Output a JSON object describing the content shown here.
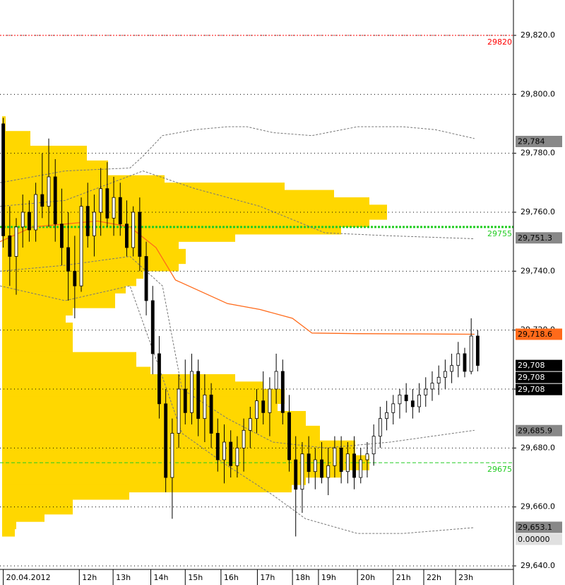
{
  "chart_data": {
    "type": "candlestick",
    "xlim": [
      0,
      79
    ],
    "ylim": [
      29638.8,
      29832
    ],
    "xticks": [
      {
        "value": 0.5,
        "label": "20.04.2012"
      },
      {
        "value": 12.2,
        "label": "12h"
      },
      {
        "value": 17.4,
        "label": "13h"
      },
      {
        "value": 23.2,
        "label": "14h"
      },
      {
        "value": 28.5,
        "label": "15h"
      },
      {
        "value": 34,
        "label": "16h"
      },
      {
        "value": 39.6,
        "label": "17h"
      },
      {
        "value": 45,
        "label": "18h"
      },
      {
        "value": 49,
        "label": "19h"
      },
      {
        "value": 55,
        "label": "20h"
      },
      {
        "value": 60.5,
        "label": "21h"
      },
      {
        "value": 65.2,
        "label": "22h"
      },
      {
        "value": 70.1,
        "label": "23h"
      }
    ],
    "yticks": [
      {
        "value": 29820,
        "label": "29,820.0"
      },
      {
        "value": 29800,
        "label": "29,800.0"
      },
      {
        "value": 29780,
        "label": "29,780.0"
      },
      {
        "value": 29760,
        "label": "29,760.0"
      },
      {
        "value": 29740,
        "label": "29,740.0"
      },
      {
        "value": 29720,
        "label": "29,720.0"
      },
      {
        "value": 29700,
        "label": "29,700.0"
      },
      {
        "value": 29680,
        "label": "29,680.0"
      },
      {
        "value": 29660,
        "label": "29,660.0"
      },
      {
        "value": 29640,
        "label": "29,640.0"
      }
    ],
    "grid": true,
    "open": [
      29790,
      29752,
      29745,
      29755,
      29760,
      29754,
      29766,
      29762,
      29772,
      29756,
      29748,
      29740,
      29735,
      29762,
      29752,
      29760,
      29768,
      29758,
      29765,
      29756,
      29748,
      29760,
      29745,
      29730,
      29712,
      29695,
      29670,
      29685,
      29700,
      29692,
      29706,
      29690,
      29698,
      29685,
      29676,
      29682,
      29674,
      29680,
      29686,
      29690,
      29696,
      29692,
      29700,
      29706,
      29692,
      29676,
      29666,
      29678,
      29672,
      29676,
      29670,
      29674,
      29680,
      29672,
      29678,
      29670,
      29676,
      29678,
      29684,
      29690,
      29692,
      29695,
      29698,
      29696,
      29694,
      29698,
      29700,
      29702,
      29704,
      29706,
      29708,
      29712,
      29706,
      29718
    ],
    "high": [
      29792,
      29762,
      29758,
      29766,
      29764,
      29770,
      29780,
      29785,
      29778,
      29768,
      29760,
      29752,
      29765,
      29770,
      29766,
      29775,
      29777,
      29772,
      29770,
      29764,
      29762,
      29765,
      29750,
      29735,
      29718,
      29700,
      29690,
      29705,
      29710,
      29712,
      29710,
      29705,
      29702,
      29690,
      29688,
      29686,
      29684,
      29690,
      29694,
      29700,
      29706,
      29704,
      29712,
      29710,
      29698,
      29684,
      29682,
      29684,
      29680,
      29682,
      29680,
      29684,
      29684,
      29682,
      29684,
      29680,
      29682,
      29688,
      29694,
      29696,
      29698,
      29700,
      29702,
      29700,
      29702,
      29704,
      29706,
      29708,
      29710,
      29712,
      29716,
      29714,
      29724,
      29720
    ],
    "low": [
      29748,
      29735,
      29732,
      29748,
      29750,
      29750,
      29758,
      29755,
      29750,
      29742,
      29730,
      29724,
      29733,
      29748,
      29745,
      29752,
      29755,
      29752,
      29752,
      29745,
      29745,
      29740,
      29725,
      29705,
      29690,
      29665,
      29656,
      29680,
      29688,
      29688,
      29684,
      29682,
      29680,
      29672,
      29668,
      29670,
      29670,
      29672,
      29680,
      29685,
      29688,
      29684,
      29695,
      29688,
      29672,
      29650,
      29658,
      29668,
      29666,
      29668,
      29664,
      29670,
      29668,
      29668,
      29666,
      29668,
      29670,
      29674,
      29680,
      29686,
      29688,
      29690,
      29692,
      29690,
      29692,
      29694,
      29696,
      29698,
      29700,
      29702,
      29704,
      29704,
      29705,
      29706
    ],
    "close": [
      29752,
      29745,
      29755,
      29760,
      29754,
      29766,
      29762,
      29772,
      29756,
      29748,
      29740,
      29735,
      29762,
      29752,
      29760,
      29768,
      29758,
      29765,
      29756,
      29748,
      29760,
      29745,
      29730,
      29712,
      29695,
      29670,
      29685,
      29700,
      29692,
      29706,
      29690,
      29698,
      29685,
      29676,
      29682,
      29674,
      29680,
      29686,
      29690,
      29696,
      29692,
      29700,
      29706,
      29692,
      29676,
      29666,
      29678,
      29672,
      29676,
      29670,
      29674,
      29680,
      29672,
      29678,
      29670,
      29676,
      29678,
      29684,
      29690,
      29692,
      29695,
      29698,
      29696,
      29694,
      29698,
      29700,
      29702,
      29704,
      29706,
      29708,
      29712,
      29706,
      29718,
      29708
    ],
    "profile": {
      "color": "#ffd700",
      "prices": [
        29790,
        29785,
        29780,
        29775,
        29770,
        29767.5,
        29765,
        29762.5,
        29760,
        29757.5,
        29755,
        29752.5,
        29750,
        29747.5,
        29745,
        29742.5,
        29740,
        29737.5,
        29735,
        29732.5,
        29730,
        29727.5,
        29725,
        29722.5,
        29720,
        29717.5,
        29715,
        29712.5,
        29710,
        29707.5,
        29705,
        29702.5,
        29700,
        29697.5,
        29695,
        29692.5,
        29690,
        29687.5,
        29685,
        29682.5,
        29680,
        29677.5,
        29675,
        29672.5,
        29670,
        29667.5,
        29665,
        29662.5,
        29660,
        29657.5,
        29655,
        29652.5
      ],
      "volumes": [
        5,
        40,
        120,
        150,
        230,
        400,
        470,
        520,
        545,
        520,
        480,
        330,
        250,
        240,
        260,
        250,
        200,
        190,
        175,
        160,
        160,
        100,
        90,
        80,
        100,
        80,
        100,
        80,
        190,
        170,
        210,
        330,
        370,
        400,
        390,
        350,
        430,
        420,
        450,
        440,
        500,
        500,
        520,
        480,
        430,
        410,
        180,
        100,
        100,
        60,
        20,
        18
      ]
    },
    "series": [
      {
        "color": "#ff6a1a",
        "style": "solid",
        "x": [
          0,
          5,
          10,
          15,
          20,
          24,
          27,
          30,
          35,
          40,
          45,
          48,
          55,
          65,
          73
        ],
        "values": [
          29750,
          29755,
          29756,
          29757,
          29755,
          29748,
          29737,
          29734,
          29729,
          29727,
          29724,
          29719,
          29718.8,
          29718.7,
          29718.6
        ]
      },
      {
        "color": "#777777",
        "style": "dashed",
        "x": [
          0,
          10,
          20,
          22,
          25,
          30,
          35,
          38,
          42,
          48,
          55,
          62,
          67,
          73
        ],
        "values": [
          29770,
          29774,
          29775,
          29779,
          29786,
          29788,
          29789,
          29789,
          29787,
          29786,
          29789,
          29789,
          29788,
          29785
        ]
      },
      {
        "color": "#777777",
        "style": "dashed",
        "x": [
          0,
          10,
          22,
          30,
          40,
          50,
          60,
          73
        ],
        "values": [
          29762,
          29764,
          29774,
          29768,
          29762,
          29753,
          29752,
          29751
        ]
      },
      {
        "color": "#777777",
        "style": "dashed",
        "x": [
          0,
          10,
          20,
          25,
          28,
          35,
          42,
          50,
          60,
          73
        ],
        "values": [
          29740,
          29742,
          29745,
          29735,
          29700,
          29690,
          29682,
          29680,
          29682,
          29686
        ]
      },
      {
        "color": "#777777",
        "style": "dashed",
        "x": [
          0,
          10,
          20,
          25,
          28,
          35,
          42,
          47,
          55,
          62,
          73
        ],
        "values": [
          29735,
          29730,
          29735,
          29704,
          29685,
          29674,
          29664,
          29656,
          29651,
          29651,
          29653
        ]
      }
    ],
    "levels": [
      {
        "value": 29820,
        "label": "29820",
        "color": "#ff0000",
        "style": "dotted"
      },
      {
        "value": 29755,
        "label": "29755",
        "color": "#22cc22",
        "style": "thick"
      },
      {
        "value": 29675,
        "label": "29675",
        "color": "#22cc22",
        "style": "dashed"
      }
    ],
    "price_markers": [
      {
        "value": 29784,
        "label": "29,784",
        "color": "#888888"
      },
      {
        "value": 29751.3,
        "label": "29,751.3",
        "color": "#888888"
      },
      {
        "value": 29718.6,
        "label": "29,718.6",
        "color": "#ff6a1a"
      },
      {
        "value": 29708,
        "label": "29,708",
        "color": "#000000"
      },
      {
        "value": 29708,
        "label": "29,708",
        "color": "#000000"
      },
      {
        "value": 29708,
        "label": "29,708",
        "color": "#000000"
      },
      {
        "value": 29685.9,
        "label": "29,685.9",
        "color": "#888888"
      },
      {
        "value": 29653.1,
        "label": "29,653.1",
        "color": "#888888"
      }
    ],
    "indicator_label": "0.00000"
  }
}
